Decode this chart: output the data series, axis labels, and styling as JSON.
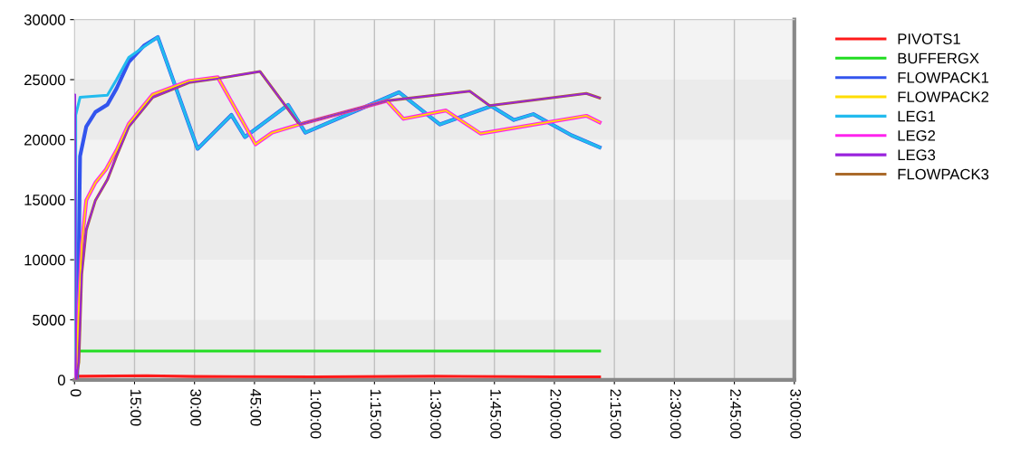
{
  "chart_data": {
    "type": "line",
    "xlim": [
      0,
      180
    ],
    "ylim": [
      0,
      30000
    ],
    "xticks": [
      {
        "value": 0,
        "label": "0"
      },
      {
        "value": 15,
        "label": "15:00"
      },
      {
        "value": 30,
        "label": "30:00"
      },
      {
        "value": 45,
        "label": "45:00"
      },
      {
        "value": 60,
        "label": "1:00:00"
      },
      {
        "value": 75,
        "label": "1:15:00"
      },
      {
        "value": 90,
        "label": "1:30:00"
      },
      {
        "value": 105,
        "label": "1:45:00"
      },
      {
        "value": 120,
        "label": "2:00:00"
      },
      {
        "value": 135,
        "label": "2:15:00"
      },
      {
        "value": 150,
        "label": "2:30:00"
      },
      {
        "value": 165,
        "label": "2:45:00"
      },
      {
        "value": 180,
        "label": "3:00:00"
      }
    ],
    "yticks": [
      0,
      5000,
      10000,
      15000,
      20000,
      25000,
      30000
    ],
    "grid": "x",
    "legend": "right",
    "marker": "none",
    "line_style": "solid",
    "bands": [
      {
        "axis": "y",
        "from": 0,
        "to": 5000,
        "color": "#ebebeb"
      },
      {
        "axis": "y",
        "from": 10000,
        "to": 15000,
        "color": "#ebebeb"
      },
      {
        "axis": "y",
        "from": 20000,
        "to": 25000,
        "color": "#ebebeb"
      }
    ],
    "series": [
      {
        "name": "PIVOTS1",
        "color": "#ff1a1a",
        "x": [
          0.3,
          0.6,
          18,
          30,
          60,
          90,
          120,
          131.3
        ],
        "values": [
          0,
          300,
          350,
          280,
          250,
          300,
          250,
          250
        ]
      },
      {
        "name": "BUFFERGX",
        "color": "#22dd22",
        "x": [
          0.3,
          0.6,
          131.3
        ],
        "values": [
          0,
          2400,
          2400
        ]
      },
      {
        "name": "FLOWPACK1",
        "color": "#3355ee",
        "x": [
          0.3,
          0.66,
          1.38,
          2.94,
          5.22,
          8.22,
          10.5,
          13.56,
          17.34,
          20.82,
          30.78,
          39.24,
          42.6,
          53.4,
          57.72,
          81.12,
          91.38,
          104.22,
          109.86,
          114.72,
          124.26,
          131.3
        ],
        "values": [
          0,
          290,
          18630,
          21100,
          22300,
          22920,
          24260,
          26470,
          27820,
          28550,
          19240,
          22060,
          20220,
          22900,
          20590,
          23950,
          21270,
          22800,
          21640,
          22130,
          20370,
          19360
        ]
      },
      {
        "name": "FLOWPACK2",
        "color": "#ffdd00",
        "x": [
          0.3,
          1.08,
          1.8,
          2.94,
          5.22,
          7.86,
          10.5,
          13.56,
          19.56,
          28.62,
          35.82,
          45.24,
          49.44,
          56.22,
          78.12,
          82.26,
          92.88,
          101.52,
          127.98,
          131.3
        ],
        "values": [
          0,
          6130,
          11270,
          14950,
          16420,
          17520,
          19120,
          21320,
          23770,
          24890,
          25200,
          19610,
          20590,
          21270,
          23240,
          21740,
          22430,
          20510,
          21990,
          21450
        ]
      },
      {
        "name": "LEG1",
        "color": "#22bbee",
        "x": [
          0.3,
          0.3,
          1.38,
          8.22,
          10.5,
          13.56,
          20.82,
          30.78,
          39.24,
          42.6,
          53.4,
          57.72,
          81.12,
          91.38,
          104.22,
          109.86,
          114.72,
          124.26,
          131.3
        ],
        "values": [
          0,
          22060,
          23530,
          23700,
          25000,
          26840,
          28550,
          19240,
          22060,
          20220,
          22900,
          20590,
          23950,
          21270,
          22800,
          21640,
          22130,
          20370,
          19360
        ]
      },
      {
        "name": "LEG2",
        "color": "#ff22ee",
        "x": [
          0.3,
          1.08,
          1.8,
          2.94,
          5.22,
          7.86,
          10.5,
          13.56,
          19.56,
          28.62,
          35.82,
          45.24,
          49.44,
          56.22,
          78.12,
          82.26,
          92.88,
          101.52,
          127.98,
          131.3
        ],
        "values": [
          0,
          6130,
          11270,
          14950,
          16420,
          17520,
          19120,
          21320,
          23770,
          24890,
          25200,
          19610,
          20590,
          21270,
          23240,
          21740,
          22430,
          20510,
          21990,
          21450
        ]
      },
      {
        "name": "LEG3",
        "color": "#9922dd",
        "x": [
          0,
          0.18,
          0.36,
          1.08,
          1.8,
          2.94,
          5.22,
          8.22,
          10.5,
          13.56,
          19.56,
          28.62,
          35.4,
          46.38,
          56.22,
          78.12,
          98.82,
          103.8,
          127.98,
          131.3
        ],
        "values": [
          23770,
          23770,
          0,
          1470,
          8820,
          12500,
          14950,
          16670,
          18630,
          21080,
          23530,
          24760,
          25070,
          25680,
          21270,
          23240,
          24040,
          22840,
          23850,
          23480
        ]
      },
      {
        "name": "FLOWPACK3",
        "color": "#aa6a2a",
        "x": [
          0.36,
          1.08,
          1.8,
          2.94,
          5.22,
          8.22,
          10.5,
          13.56,
          19.56,
          28.62,
          35.4,
          46.38,
          56.22,
          78.12,
          98.82,
          103.8,
          127.98,
          131.3
        ],
        "values": [
          0,
          1470,
          8820,
          12500,
          14950,
          16670,
          18630,
          21080,
          23530,
          24760,
          25070,
          25680,
          21270,
          23240,
          24040,
          22840,
          23850,
          23480
        ]
      }
    ]
  }
}
